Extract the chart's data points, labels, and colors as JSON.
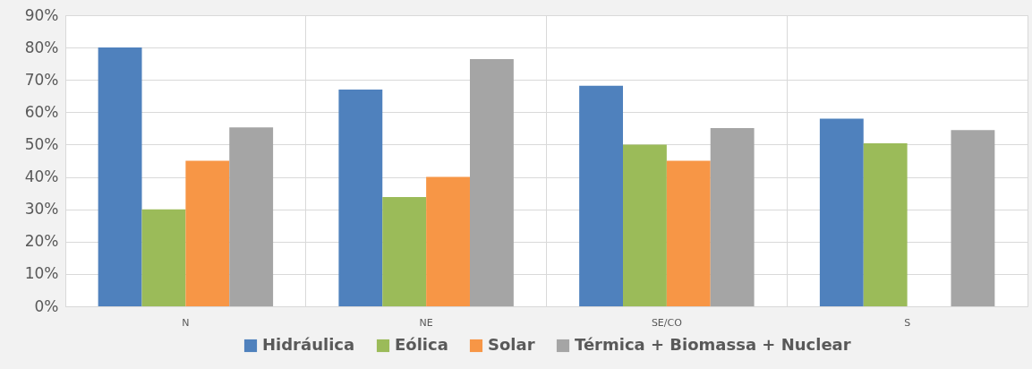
{
  "chart_data": {
    "type": "bar",
    "categories": [
      "N",
      "NE",
      "SE/CO",
      "S"
    ],
    "series": [
      {
        "name": "Hidráulica",
        "color": "#4f81bd",
        "values": [
          80,
          67,
          68.2,
          58
        ]
      },
      {
        "name": "Eólica",
        "color": "#9bbb59",
        "values": [
          30,
          33.8,
          50,
          50.4
        ]
      },
      {
        "name": "Solar",
        "color": "#f79646",
        "values": [
          45,
          40,
          45,
          null
        ]
      },
      {
        "name": "Térmica + Biomassa + Nuclear",
        "color": "#a5a5a5",
        "values": [
          55.3,
          76.4,
          55.1,
          54.5
        ]
      }
    ],
    "ylim": [
      0,
      90
    ],
    "yticks": [
      {
        "value": 0,
        "label": "0%"
      },
      {
        "value": 10,
        "label": "10%"
      },
      {
        "value": 20,
        "label": "20%"
      },
      {
        "value": 30,
        "label": "30%"
      },
      {
        "value": 40,
        "label": "40%"
      },
      {
        "value": 50,
        "label": "50%"
      },
      {
        "value": 60,
        "label": "60%"
      },
      {
        "value": 70,
        "label": "70%"
      },
      {
        "value": 80,
        "label": "80%"
      },
      {
        "value": 90,
        "label": "90%"
      }
    ],
    "grid": true,
    "legend": "bottom"
  }
}
